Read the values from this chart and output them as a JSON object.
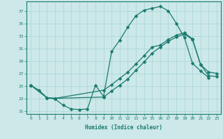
{
  "xlabel": "Humidex (Indice chaleur)",
  "bg_color": "#cce8e8",
  "line_color": "#1a7a6e",
  "xlim": [
    -0.5,
    23.5
  ],
  "ylim": [
    20.5,
    38.5
  ],
  "xticks": [
    0,
    1,
    2,
    3,
    4,
    5,
    6,
    7,
    8,
    9,
    10,
    11,
    12,
    13,
    14,
    15,
    16,
    17,
    18,
    19,
    20,
    21,
    22,
    23
  ],
  "yticks": [
    21,
    23,
    25,
    27,
    29,
    31,
    33,
    35,
    37
  ],
  "curve1_x": [
    0,
    1,
    2,
    3,
    4,
    5,
    6,
    7,
    8,
    9,
    10,
    11,
    12,
    13,
    14,
    15,
    16,
    17,
    18,
    19,
    20,
    21,
    22,
    23
  ],
  "curve1_y": [
    25.1,
    24.3,
    23.1,
    22.9,
    21.9,
    21.3,
    21.2,
    21.3,
    25.1,
    23.3,
    30.5,
    32.3,
    34.4,
    36.2,
    37.1,
    37.4,
    37.7,
    37.0,
    35.0,
    32.7,
    28.6,
    27.4,
    26.3,
    null
  ],
  "curve2_x": [
    0,
    2,
    3,
    9,
    10,
    11,
    12,
    13,
    14,
    15,
    16,
    17,
    18,
    19,
    20,
    21,
    22,
    23
  ],
  "curve2_y": [
    25.1,
    23.1,
    23.0,
    23.2,
    24.2,
    25.1,
    26.1,
    27.5,
    28.8,
    30.2,
    31.2,
    32.1,
    32.8,
    33.3,
    32.4,
    28.4,
    27.2,
    27.0
  ],
  "curve3_x": [
    0,
    2,
    3,
    9,
    10,
    11,
    12,
    13,
    14,
    15,
    16,
    17,
    18,
    19,
    20,
    21,
    22,
    23
  ],
  "curve3_y": [
    25.1,
    23.1,
    23.0,
    24.3,
    25.2,
    26.2,
    27.2,
    28.5,
    29.8,
    31.2,
    31.5,
    32.4,
    33.1,
    33.5,
    32.5,
    28.4,
    26.6,
    26.5
  ]
}
